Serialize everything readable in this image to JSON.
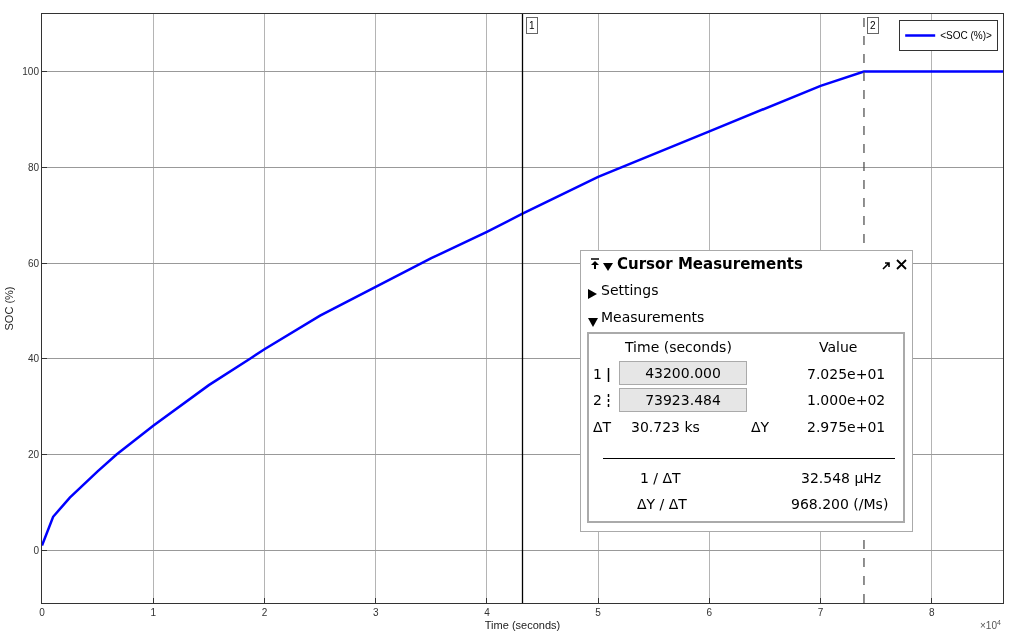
{
  "chart_data": [
    {
      "type": "line",
      "xlabel": "Time (seconds)",
      "ylabel": "SOC (%)",
      "x": [
        0,
        0.1,
        0.25,
        0.5,
        0.67,
        1,
        1.5,
        1.87,
        2,
        2.5,
        3,
        3.5,
        4,
        4.32,
        5,
        6,
        7,
        7.39,
        8.64
      ],
      "series": [
        {
          "name": "<SOC (%)>",
          "color": "#0000ff",
          "values": [
            1,
            7,
            11,
            16.5,
            20,
            26,
            34.5,
            40,
            42,
            49,
            55,
            61,
            66.5,
            70.3,
            78,
            87.5,
            97,
            100,
            100
          ]
        }
      ],
      "xlim": [
        0,
        8.64
      ],
      "ylim": [
        -11,
        112
      ],
      "xticks": [
        0,
        1,
        2,
        3,
        4,
        5,
        6,
        7,
        8
      ],
      "yticks": [
        0,
        20,
        40,
        60,
        80,
        100
      ],
      "ref_lines": [
        {
          "axis": "x",
          "value": 4.32,
          "color": "#000000",
          "line_style": "solid"
        },
        {
          "axis": "x",
          "value": 7.39,
          "color": "#555555",
          "line_style": "dashed"
        }
      ],
      "annotations": [
        "×10$^{4}$",
        {
          "text": "1",
          "x": 4.32
        },
        {
          "text": "2",
          "x": 7.39
        }
      ],
      "grid": true,
      "legend": "top right",
      "marker": "none",
      "line_style": "solid"
    },
    {
      "type": "other",
      "title": "Cursor Measurements",
      "annotations": [
        "Settings",
        "Measurements",
        "Time (seconds)",
        "Value",
        "1",
        "43200.000",
        "7.025e+01",
        "2",
        "73923.484",
        "1.000e+02",
        "ΔT",
        "30.723 ks",
        "ΔY",
        "2.975e+01",
        "1 / ΔT",
        "32.548 µHz",
        "ΔY / ΔT",
        "968.200 (/Ms)"
      ]
    }
  ]
}
